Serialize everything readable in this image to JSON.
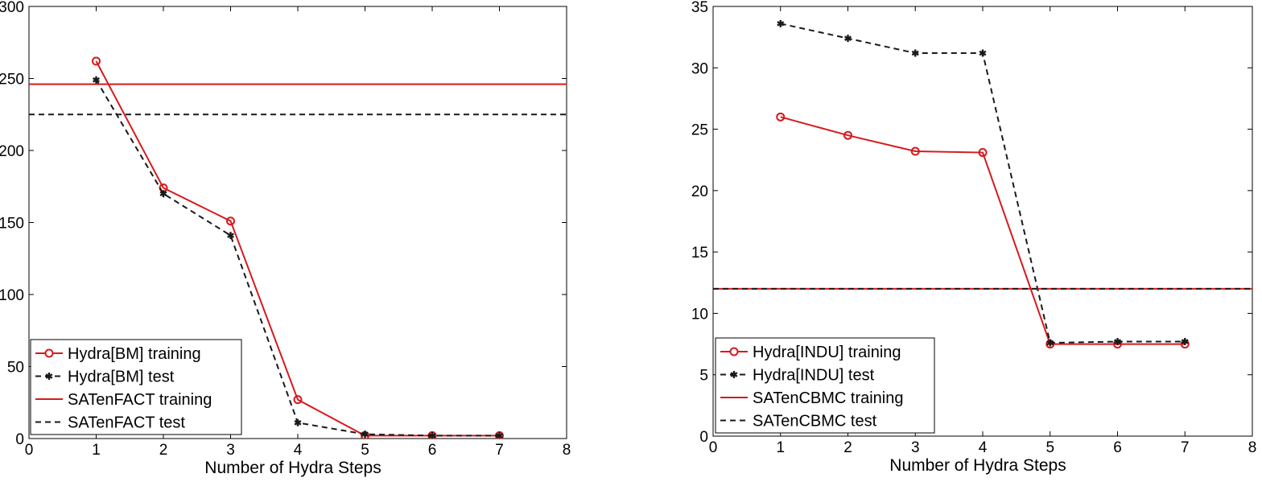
{
  "chart_data": [
    {
      "type": "line",
      "xlabel": "Number of Hydra Steps",
      "ylabel": "",
      "xlim": [
        0,
        8
      ],
      "ylim": [
        0,
        300
      ],
      "xticks": [
        0,
        1,
        2,
        3,
        4,
        5,
        6,
        7,
        8
      ],
      "yticks": [
        0,
        50,
        100,
        150,
        200,
        250,
        300
      ],
      "grid": false,
      "legend_position": "bottom-left",
      "series": [
        {
          "name": "Hydra[BM] training",
          "color": "#d7191c",
          "dash": "solid",
          "marker": "circle",
          "x": [
            1,
            2,
            3,
            4,
            5,
            6,
            7
          ],
          "y": [
            262,
            174,
            151,
            27,
            2,
            2,
            2
          ]
        },
        {
          "name": "Hydra[BM] test",
          "color": "#1a1a1a",
          "dash": "dashed",
          "marker": "star",
          "x": [
            1,
            2,
            3,
            4,
            5,
            6,
            7
          ],
          "y": [
            249,
            170,
            141,
            11,
            3,
            2,
            2
          ]
        },
        {
          "name": "SATenFACT training",
          "color": "#d7191c",
          "dash": "solid",
          "marker": "none",
          "hline": 246
        },
        {
          "name": "SATenFACT test",
          "color": "#1a1a1a",
          "dash": "dashed",
          "marker": "none",
          "hline": 225
        }
      ]
    },
    {
      "type": "line",
      "xlabel": "Number of Hydra Steps",
      "ylabel": "",
      "xlim": [
        0,
        8
      ],
      "ylim": [
        0,
        35
      ],
      "xticks": [
        0,
        1,
        2,
        3,
        4,
        5,
        6,
        7,
        8
      ],
      "yticks": [
        0,
        5,
        10,
        15,
        20,
        25,
        30,
        35
      ],
      "grid": false,
      "legend_position": "bottom-left",
      "series": [
        {
          "name": "Hydra[INDU] training",
          "color": "#d7191c",
          "dash": "solid",
          "marker": "circle",
          "x": [
            1,
            2,
            3,
            4,
            5,
            6,
            7
          ],
          "y": [
            26.0,
            24.5,
            23.2,
            23.1,
            7.5,
            7.5,
            7.5
          ]
        },
        {
          "name": "Hydra[INDU] test",
          "color": "#1a1a1a",
          "dash": "dashed",
          "marker": "star",
          "x": [
            1,
            2,
            3,
            4,
            5,
            6,
            7
          ],
          "y": [
            33.6,
            32.4,
            31.2,
            31.2,
            7.6,
            7.7,
            7.7
          ]
        },
        {
          "name": "SATenCBMC training",
          "color": "#d7191c",
          "dash": "solid",
          "marker": "none",
          "hline": 12.0
        },
        {
          "name": "SATenCBMC test",
          "color": "#1a1a1a",
          "dash": "dashed",
          "marker": "none",
          "hline": 12.0
        }
      ]
    }
  ]
}
